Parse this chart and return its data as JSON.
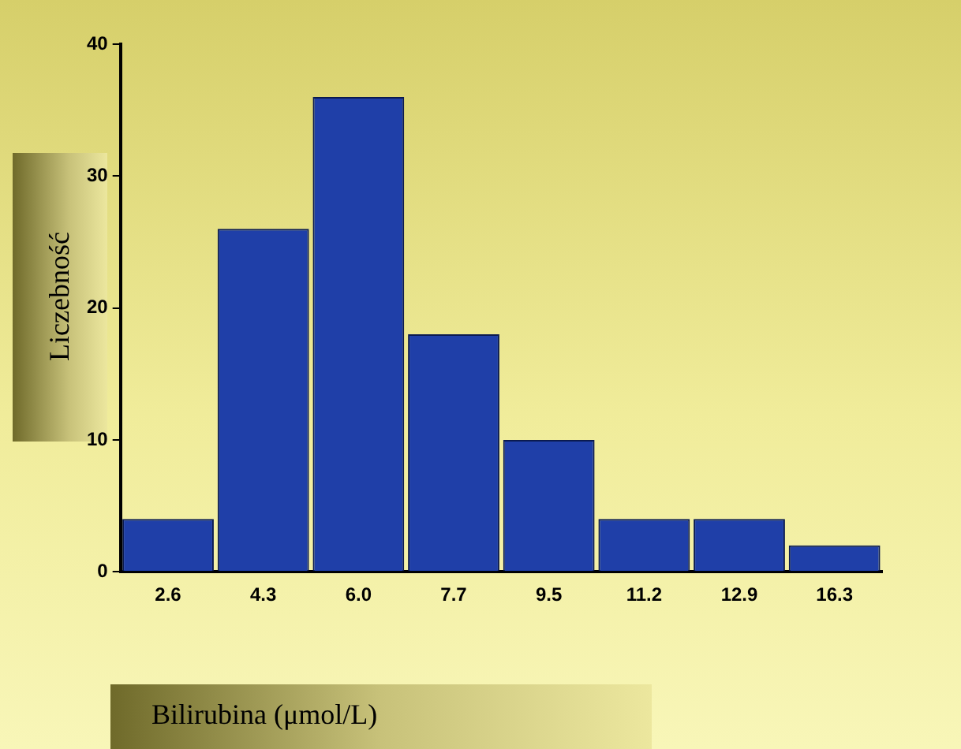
{
  "chart_data": {
    "type": "bar",
    "xlabel": "Bilirubina (μmol/L)",
    "ylabel": "Liczebność",
    "categories": [
      "2.6",
      "4.3",
      "6.0",
      "7.7",
      "9.5",
      "11.2",
      "12.9",
      "16.3"
    ],
    "values": [
      4,
      26,
      36,
      18,
      10,
      4,
      4,
      2
    ],
    "color": "#1f3fa8",
    "ylim": [
      0,
      40
    ],
    "yticks": [
      0,
      10,
      20,
      30,
      40
    ],
    "grid": false,
    "legend": false
  }
}
